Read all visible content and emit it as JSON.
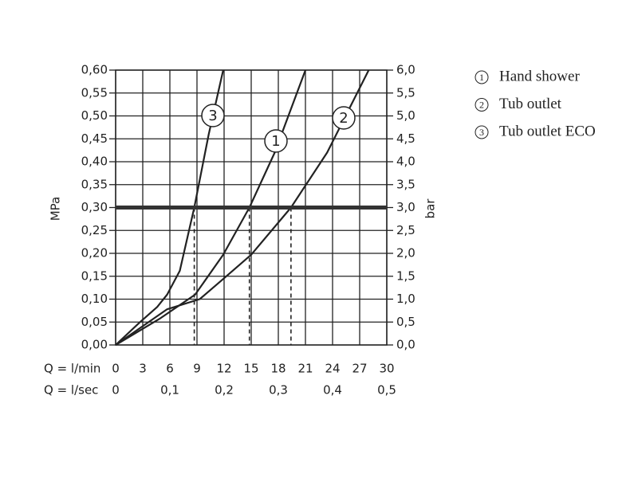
{
  "chart_data": {
    "type": "line",
    "x_label": "Q = l/min",
    "x2_label": "Q = l/sec",
    "y_label": "MPa",
    "y2_label": "bar",
    "xlim": [
      0,
      30
    ],
    "xticks": [
      0,
      3,
      6,
      9,
      12,
      15,
      18,
      21,
      24,
      27,
      30
    ],
    "x2lim": [
      0,
      0.5
    ],
    "x2ticks": [
      0,
      {
        "value": 0.1,
        "label": "0,1"
      },
      {
        "value": 0.2,
        "label": "0,2"
      },
      {
        "value": 0.3,
        "label": "0,3"
      },
      {
        "value": 0.4,
        "label": "0,4"
      },
      {
        "value": 0.5,
        "label": "0,5"
      }
    ],
    "ylim": [
      0,
      0.6
    ],
    "yticks": [
      {
        "value": 0,
        "label": "0,00"
      },
      {
        "value": 0.05,
        "label": "0,05"
      },
      {
        "value": 0.1,
        "label": "0,10"
      },
      {
        "value": 0.15,
        "label": "0,15"
      },
      {
        "value": 0.2,
        "label": "0,20"
      },
      {
        "value": 0.25,
        "label": "0,25"
      },
      {
        "value": 0.3,
        "label": "0,30"
      },
      {
        "value": 0.35,
        "label": "0,35"
      },
      {
        "value": 0.4,
        "label": "0,40"
      },
      {
        "value": 0.45,
        "label": "0,45"
      },
      {
        "value": 0.5,
        "label": "0,50"
      },
      {
        "value": 0.55,
        "label": "0,55"
      },
      {
        "value": 0.6,
        "label": "0,60"
      }
    ],
    "y2lim": [
      0,
      6
    ],
    "y2ticks": [
      {
        "value": 0,
        "label": "0,0"
      },
      {
        "value": 0.5,
        "label": "0,5"
      },
      {
        "value": 1,
        "label": "1,0"
      },
      {
        "value": 1.5,
        "label": "1,5"
      },
      {
        "value": 2,
        "label": "2,0"
      },
      {
        "value": 2.5,
        "label": "2,5"
      },
      {
        "value": 3,
        "label": "3,0"
      },
      {
        "value": 3.5,
        "label": "3,5"
      },
      {
        "value": 4,
        "label": "4,0"
      },
      {
        "value": 4.5,
        "label": "4,5"
      },
      {
        "value": 5,
        "label": "5,0"
      },
      {
        "value": 5.5,
        "label": "5,5"
      },
      {
        "value": 6,
        "label": "6,0"
      }
    ],
    "grid": true,
    "color": "#222",
    "reference_line": 0.3,
    "series": [
      {
        "name": "Hand shower",
        "marker": "1",
        "x": [
          0,
          4.85,
          8.8,
          11.9,
          14.8,
          17.6,
          21
        ],
        "values": [
          0,
          0.057,
          0.11,
          0.197,
          0.3,
          0.42,
          0.6
        ]
      },
      {
        "name": "Tub outlet",
        "marker": "2",
        "x": [
          0,
          5.7,
          9.3,
          11.9,
          15,
          19.4,
          23.4,
          28
        ],
        "values": [
          0,
          0.078,
          0.1,
          0.144,
          0.197,
          0.3,
          0.42,
          0.6
        ]
      },
      {
        "name": "Tub outlet ECO",
        "marker": "3",
        "x": [
          0,
          2.65,
          4.6,
          5.7,
          7.1,
          8.7,
          10.3,
          11.9
        ],
        "values": [
          0,
          0.049,
          0.083,
          0.11,
          0.162,
          0.3,
          0.46,
          0.6
        ]
      }
    ]
  }
}
